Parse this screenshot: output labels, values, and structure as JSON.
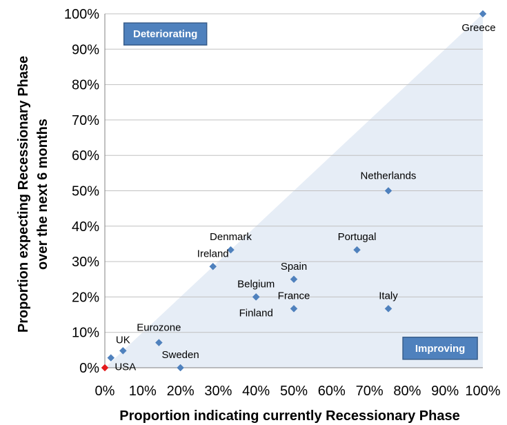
{
  "chart_data": {
    "type": "scatter",
    "title": "",
    "xlabel": "Proportion indicating currently Recessionary Phase",
    "ylabel_lines": [
      "Proportion expecting Recessionary Phase",
      "over the next 6 months"
    ],
    "xlim": [
      0,
      100
    ],
    "ylim": [
      0,
      100
    ],
    "x_ticks": [
      "0%",
      "10%",
      "20%",
      "30%",
      "40%",
      "50%",
      "60%",
      "70%",
      "80%",
      "90%",
      "100%"
    ],
    "y_ticks": [
      "0%",
      "10%",
      "20%",
      "30%",
      "40%",
      "50%",
      "60%",
      "70%",
      "80%",
      "90%",
      "100%"
    ],
    "grid": "horizontal",
    "reference_line": "diagonal y = x (shaded region below)",
    "zone_labels": {
      "upper_left": "Deteriorating",
      "lower_right": "Improving"
    },
    "points": [
      {
        "label": "Greece",
        "x": 100,
        "y": 100
      },
      {
        "label": "Netherlands",
        "x": 75,
        "y": 50
      },
      {
        "label": "Portugal",
        "x": 66.7,
        "y": 33.3
      },
      {
        "label": "Denmark",
        "x": 33.3,
        "y": 33.3
      },
      {
        "label": "Ireland",
        "x": 28.6,
        "y": 28.6
      },
      {
        "label": "Spain",
        "x": 50,
        "y": 25
      },
      {
        "label": "Belgium",
        "x": 40,
        "y": 20
      },
      {
        "label": "France",
        "x": 50,
        "y": 16.7
      },
      {
        "label": "Finland",
        "x": 40,
        "y": 20
      },
      {
        "label": "Italy",
        "x": 75,
        "y": 16.7
      },
      {
        "label": "Eurozone",
        "x": 14.3,
        "y": 7.1
      },
      {
        "label": "UK",
        "x": 4.8,
        "y": 4.8
      },
      {
        "label": "USA",
        "x": 1.6,
        "y": 2.8
      },
      {
        "label": "Sweden",
        "x": 20,
        "y": 0
      },
      {
        "label": "",
        "x": 0,
        "y": 0,
        "highlight": true
      }
    ],
    "colors": {
      "marker": "#4f81bd",
      "marker_highlight": "#e41a1c",
      "shaded_region": "#e6edf6",
      "zone_box_fill": "#4f81bd",
      "zone_box_stroke": "#385d8a",
      "gridline": "#c0c0c0"
    }
  }
}
